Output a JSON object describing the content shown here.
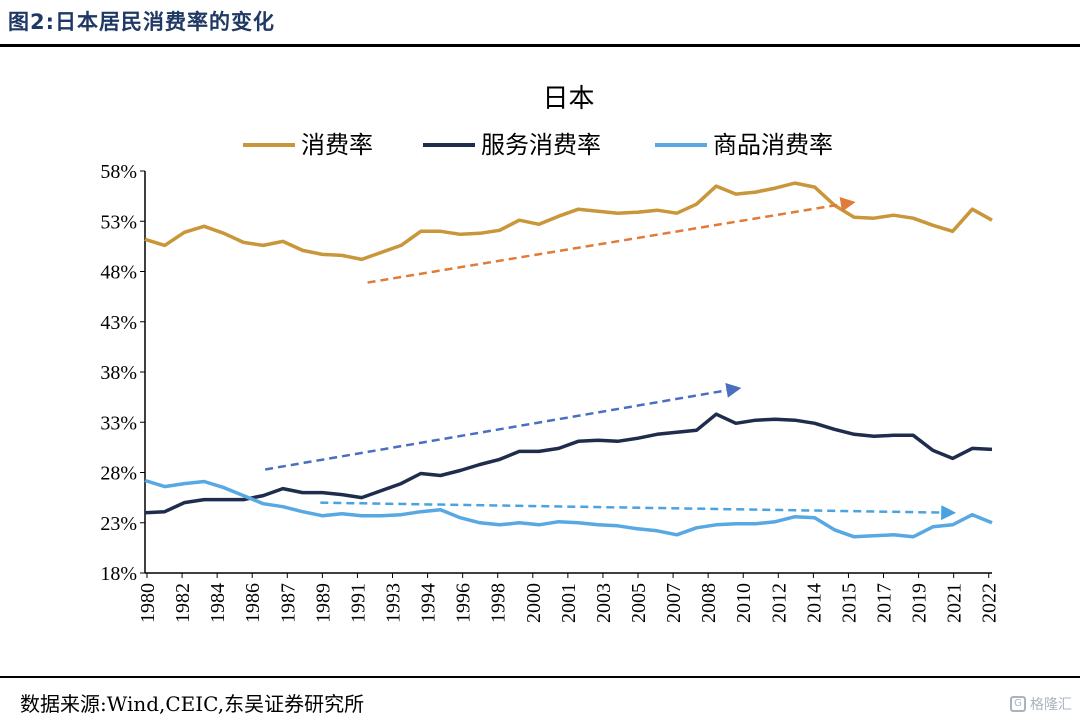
{
  "figure_label": "图2:日本居民消费率的变化",
  "source": "数据来源:Wind,CEIC,东吴证券研究所",
  "watermark": "格隆汇",
  "watermark_icon": "logo-icon",
  "chart_data": {
    "type": "line",
    "title": "日本",
    "xlabel": "",
    "ylabel": "",
    "ylim": [
      18,
      58
    ],
    "y_ticks": [
      18,
      23,
      28,
      33,
      38,
      43,
      48,
      53,
      58
    ],
    "y_tick_labels": [
      "18%",
      "23%",
      "28%",
      "33%",
      "38%",
      "43%",
      "48%",
      "53%",
      "58%"
    ],
    "x_tick_labels": [
      "1980",
      "1982",
      "1984",
      "1986",
      "1987",
      "1989",
      "1991",
      "1993",
      "1994",
      "1996",
      "1998",
      "2000",
      "2001",
      "2003",
      "2005",
      "2007",
      "2008",
      "2010",
      "2012",
      "2014",
      "2015",
      "2017",
      "2019",
      "2021",
      "2022"
    ],
    "legend_position": "top",
    "grid": false,
    "series": [
      {
        "name": "消费率",
        "color": "#c9963a",
        "values": [
          51.2,
          50.6,
          51.9,
          52.5,
          51.8,
          50.9,
          50.6,
          51.0,
          50.1,
          49.7,
          49.6,
          49.2,
          49.9,
          50.6,
          52.0,
          52.0,
          51.7,
          51.8,
          52.1,
          53.1,
          52.7,
          53.5,
          54.2,
          54.0,
          53.8,
          53.9,
          54.1,
          53.8,
          54.7,
          56.5,
          55.7,
          55.9,
          56.3,
          56.8,
          56.4,
          54.6,
          53.4,
          53.3,
          53.6,
          53.3,
          52.6,
          52.0,
          54.2,
          53.1
        ]
      },
      {
        "name": "服务消费率",
        "color": "#1f2d4d",
        "values": [
          24.0,
          24.1,
          25.0,
          25.3,
          25.3,
          25.3,
          25.7,
          26.4,
          26.0,
          26.0,
          25.8,
          25.5,
          26.2,
          26.9,
          27.9,
          27.7,
          28.2,
          28.8,
          29.3,
          30.1,
          30.1,
          30.4,
          31.1,
          31.2,
          31.1,
          31.4,
          31.8,
          32.0,
          32.2,
          33.8,
          32.9,
          33.2,
          33.3,
          33.2,
          32.9,
          32.3,
          31.8,
          31.6,
          31.7,
          31.7,
          30.2,
          29.4,
          30.4,
          30.3
        ]
      },
      {
        "name": "商品消费率",
        "color": "#58a8e3",
        "values": [
          27.2,
          26.6,
          26.9,
          27.1,
          26.5,
          25.7,
          24.9,
          24.6,
          24.1,
          23.7,
          23.9,
          23.7,
          23.7,
          23.8,
          24.1,
          24.3,
          23.5,
          23.0,
          22.8,
          23.0,
          22.8,
          23.1,
          23.0,
          22.8,
          22.7,
          22.4,
          22.2,
          21.8,
          22.5,
          22.8,
          22.9,
          22.9,
          23.1,
          23.6,
          23.5,
          22.3,
          21.6,
          21.7,
          21.8,
          21.6,
          22.6,
          22.8,
          23.8,
          23.0
        ]
      }
    ],
    "annotations": [
      {
        "type": "arrow",
        "color": "#e07b39",
        "from_x": 11.3,
        "from_y": 46.9,
        "to_x": 35.7,
        "to_y": 54.8
      },
      {
        "type": "arrow",
        "color": "#4a6fbf",
        "from_x": 6.1,
        "from_y": 28.3,
        "to_x": 29.9,
        "to_y": 36.3
      },
      {
        "type": "arrow",
        "color": "#4aa3e0",
        "from_x": 8.9,
        "from_y": 25.0,
        "to_x": 40.8,
        "to_y": 24.0
      }
    ]
  }
}
